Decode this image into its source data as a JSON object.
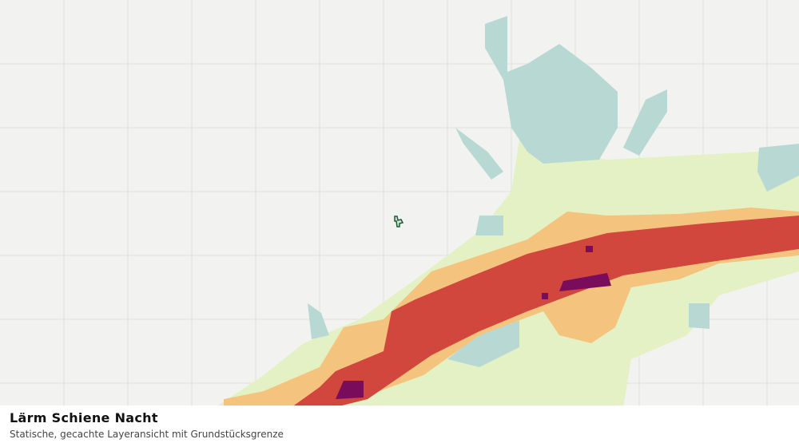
{
  "legend_panel": {
    "title": "Lärm Schiene Nacht",
    "subtitle": "Statische, gecachte Layeransicht mit Grundstücksgrenze"
  }
}
